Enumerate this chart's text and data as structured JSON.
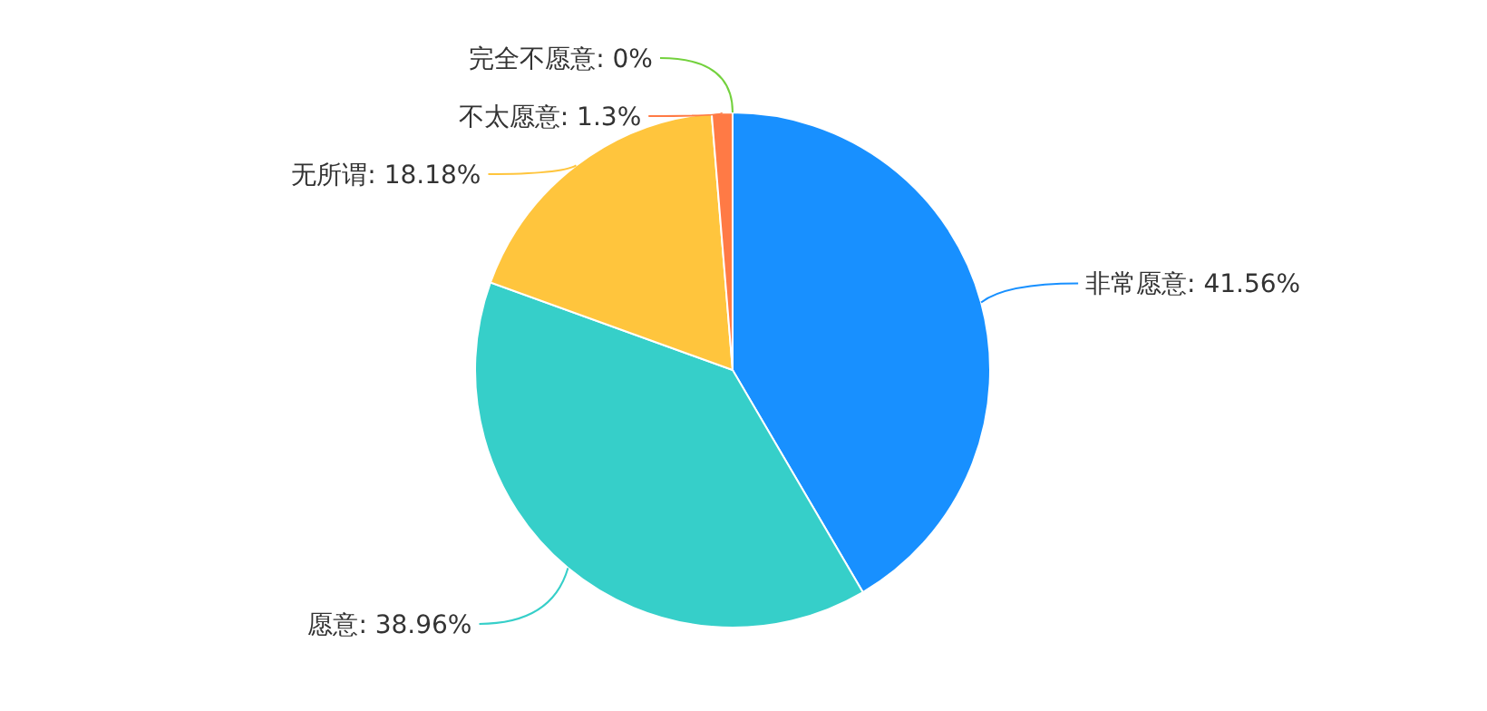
{
  "chart_data": {
    "type": "pie",
    "categories": [
      "非常愿意",
      "愿意",
      "无所谓",
      "不太愿意",
      "完全不愿意"
    ],
    "values": [
      41.56,
      38.96,
      18.18,
      1.3,
      0
    ],
    "colors": [
      "#1890ff",
      "#36cfc9",
      "#ffc53d",
      "#ff7a45",
      "#73d13d"
    ],
    "value_labels": [
      ": 41.56%",
      ": 38.96%",
      ": 18.18%",
      ": 1.3%",
      ": 0%"
    ]
  }
}
